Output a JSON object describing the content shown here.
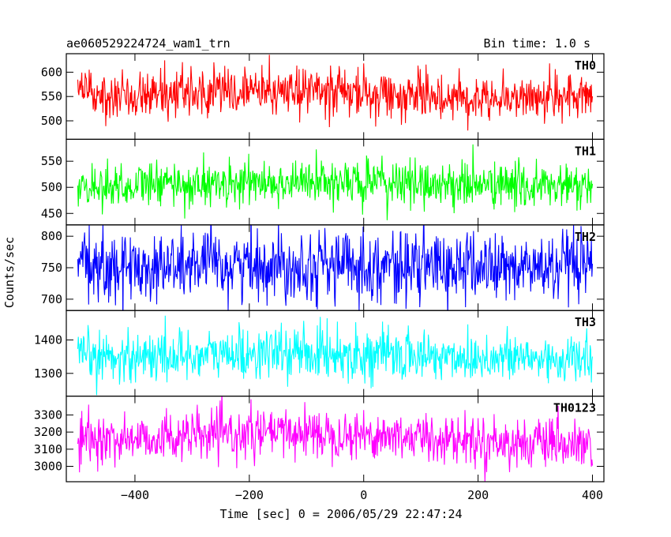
{
  "header": {
    "title": "ae060529224724_wam1_trn",
    "bin_time": "Bin time: 1.0 s"
  },
  "axis": {
    "xlabel": "Time [sec] 0 = 2006/05/29 22:47:24",
    "ylabel": "Counts/sec"
  },
  "chart_data": {
    "type": "line",
    "title": "ae060529224724_wam1_trn",
    "subtitle": "Bin time: 1.0 s",
    "xlabel": "Time [sec] 0 = 2006/05/29 22:47:24",
    "ylabel": "Counts/sec",
    "xlim": [
      -520,
      420
    ],
    "x_range_data": [
      -500,
      400
    ],
    "xticks": [
      -400,
      -200,
      0,
      200,
      400
    ],
    "bin_time_s": 1.0,
    "grid": false,
    "legend": "none",
    "panels": [
      {
        "name": "TH0",
        "color": "#ff0000",
        "ylim": [
          462,
          638
        ],
        "yticks": [
          500,
          550,
          600
        ],
        "mean": 556,
        "sigma": 24,
        "trend": [
          [
            -500,
            556
          ],
          [
            -100,
            562
          ],
          [
            100,
            550
          ],
          [
            400,
            548
          ]
        ]
      },
      {
        "name": "TH1",
        "color": "#00ff00",
        "ylim": [
          428,
          592
        ],
        "yticks": [
          450,
          500,
          550
        ],
        "mean": 505,
        "sigma": 22,
        "trend": [
          [
            -500,
            502
          ],
          [
            -100,
            510
          ],
          [
            100,
            507
          ],
          [
            400,
            500
          ]
        ]
      },
      {
        "name": "TH2",
        "color": "#0000ff",
        "ylim": [
          682,
          818
        ],
        "yticks": [
          700,
          750,
          800
        ],
        "mean": 752,
        "sigma": 28,
        "trend": [
          [
            -500,
            750
          ],
          [
            -100,
            756
          ],
          [
            100,
            752
          ],
          [
            400,
            748
          ]
        ]
      },
      {
        "name": "TH3",
        "color": "#00ffff",
        "ylim": [
          1232,
          1488
        ],
        "yticks": [
          1300,
          1400
        ],
        "mean": 1350,
        "sigma": 38,
        "trend": [
          [
            -500,
            1348
          ],
          [
            -100,
            1362
          ],
          [
            100,
            1352
          ],
          [
            400,
            1340
          ]
        ]
      },
      {
        "name": "TH0123",
        "color": "#ff00ff",
        "ylim": [
          2910,
          3410
        ],
        "yticks": [
          3000,
          3100,
          3200,
          3300
        ],
        "mean": 3165,
        "sigma": 70,
        "trend": [
          [
            -500,
            3150
          ],
          [
            -100,
            3200
          ],
          [
            100,
            3170
          ],
          [
            400,
            3110
          ]
        ]
      }
    ]
  }
}
